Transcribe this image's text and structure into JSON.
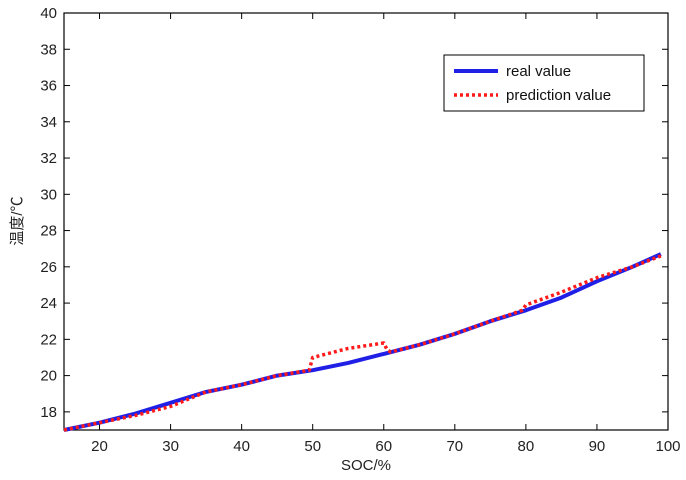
{
  "chart_data": {
    "type": "line",
    "xlabel": "SOC/%",
    "ylabel": "温度/℃",
    "xlim": [
      15,
      100
    ],
    "ylim": [
      17,
      40
    ],
    "x_ticks": [
      20,
      30,
      40,
      50,
      60,
      70,
      80,
      90,
      100
    ],
    "y_ticks": [
      18,
      20,
      22,
      24,
      26,
      28,
      30,
      32,
      34,
      36,
      38,
      40
    ],
    "grid": false,
    "legend_position": "top-right",
    "series": [
      {
        "name": "real value",
        "color": "#1f1fe6",
        "style": "solid",
        "x": [
          15,
          20,
          25,
          30,
          35,
          40,
          45,
          50,
          55,
          60,
          65,
          70,
          75,
          80,
          85,
          90,
          95,
          99
        ],
        "y": [
          17.0,
          17.4,
          17.9,
          18.5,
          19.1,
          19.5,
          20.0,
          20.3,
          20.7,
          21.2,
          21.7,
          22.3,
          23.0,
          23.6,
          24.3,
          25.2,
          26.0,
          26.7
        ]
      },
      {
        "name": "prediction value",
        "color": "#ff1a1a",
        "style": "dotted",
        "x": [
          15,
          20,
          25,
          30,
          35,
          40,
          45,
          49.5,
          50,
          55,
          60,
          60.5,
          61,
          65,
          70,
          75,
          79.5,
          80,
          85,
          90,
          95,
          99
        ],
        "y": [
          17.0,
          17.4,
          17.8,
          18.3,
          19.1,
          19.5,
          20.0,
          20.3,
          21.0,
          21.5,
          21.8,
          21.4,
          21.3,
          21.7,
          22.3,
          23.0,
          23.6,
          23.9,
          24.6,
          25.4,
          26.0,
          26.6
        ]
      }
    ]
  }
}
